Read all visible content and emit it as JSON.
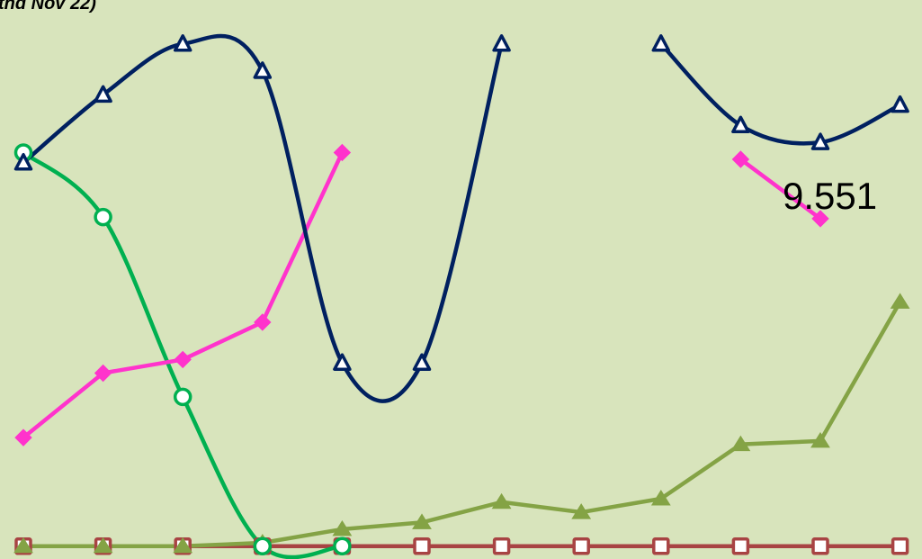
{
  "chart_data": {
    "type": "line",
    "subtitle_fragment": "thd Nov 22)",
    "x": [
      1,
      2,
      3,
      4,
      5,
      6,
      7,
      8,
      9,
      10,
      11,
      12
    ],
    "ylim": [
      0,
      16
    ],
    "grid": false,
    "series": [
      {
        "key": "navy",
        "color": "#002060",
        "marker": "triangle-open",
        "smooth": true,
        "values": [
          11.2,
          13.2,
          14.7,
          13.9,
          5.3,
          5.3,
          14.7,
          null,
          14.7,
          12.3,
          11.8,
          12.9
        ]
      },
      {
        "key": "magenta",
        "color": "#ff33cc",
        "marker": "diamond",
        "smooth": false,
        "values": [
          3.1,
          5.0,
          5.4,
          6.5,
          11.5,
          null,
          null,
          null,
          null,
          11.3,
          9.551,
          null
        ],
        "data_labels": [
          {
            "index": 10,
            "text": "9.551"
          }
        ]
      },
      {
        "key": "green",
        "color": "#00b050",
        "marker": "circle-open",
        "smooth": true,
        "values": [
          11.5,
          9.6,
          4.3,
          -0.1,
          -0.1,
          null,
          null,
          null,
          null,
          null,
          null,
          null
        ]
      },
      {
        "key": "olive",
        "color": "#84a345",
        "marker": "triangle-filled",
        "smooth": false,
        "values": [
          -0.1,
          -0.1,
          -0.1,
          0.0,
          0.4,
          0.6,
          1.2,
          0.9,
          1.3,
          2.9,
          3.0,
          7.1
        ]
      },
      {
        "key": "red",
        "color": "#a84343",
        "marker": "square-open",
        "smooth": false,
        "values": [
          -0.1,
          -0.1,
          -0.1,
          -0.1,
          -0.1,
          -0.1,
          -0.1,
          -0.1,
          -0.1,
          -0.1,
          -0.1,
          -0.1
        ]
      }
    ]
  }
}
